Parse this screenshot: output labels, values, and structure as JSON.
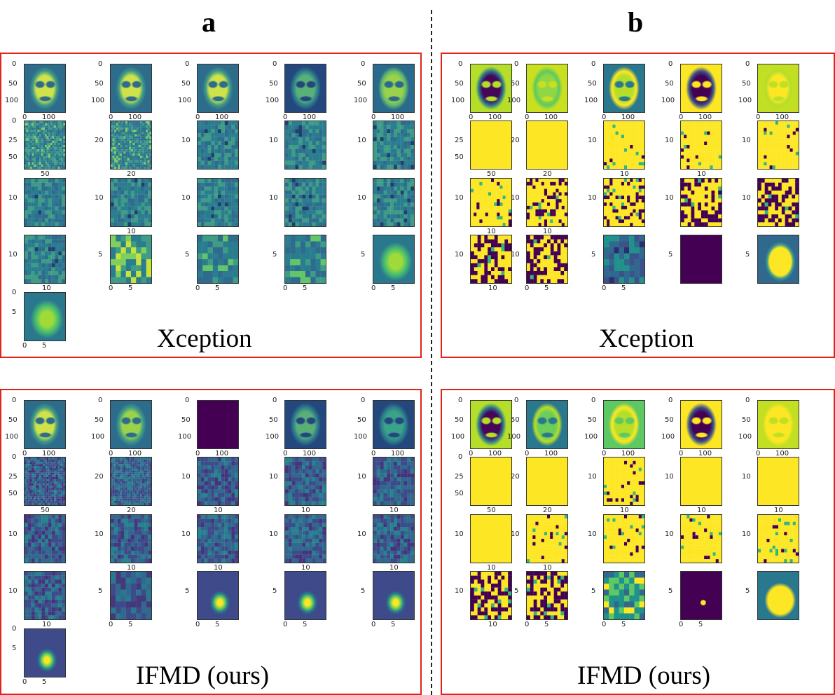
{
  "columns": [
    {
      "letter": "a"
    },
    {
      "letter": "b"
    }
  ],
  "panels": [
    {
      "id": "a-xception",
      "caption": "Xception",
      "palette": [
        "#2a7d8e",
        "#3e9c86",
        "#2f6b8e",
        "#7fcf5a",
        "#c7e23a"
      ],
      "faces": [
        {
          "colors": [
            "#cfe24a",
            "#2e6c8c",
            "#3e9a86"
          ]
        },
        {
          "colors": [
            "#cfe24a",
            "#2e6c8c",
            "#3e9a86"
          ]
        },
        {
          "colors": [
            "#cfe24a",
            "#2e6c8c",
            "#3e9a86"
          ]
        },
        {
          "colors": [
            "#58b178",
            "#24487e",
            "#2e7e8c"
          ]
        },
        {
          "colors": [
            "#9bd24b",
            "#2a6a8c",
            "#63b96e"
          ]
        }
      ],
      "tile_styles": [
        "noise",
        "noise",
        "grid",
        "grid",
        "grid",
        "grid",
        "grid",
        "grid",
        "grid",
        "grid",
        "grid",
        "blobs",
        "block",
        "block",
        "blob-bright",
        "blob-bright"
      ],
      "ticks": {
        "row1_y": [
          "0",
          "50",
          "100"
        ],
        "row1_x": [
          "0",
          "100"
        ],
        "row2_y": [
          [
            "0",
            "25",
            "50"
          ],
          [
            "",
            "20",
            ""
          ],
          [
            "",
            "10",
            ""
          ],
          [
            "",
            "10",
            ""
          ],
          [
            "",
            "10",
            ""
          ]
        ],
        "row2_x": [
          "50",
          "20",
          "",
          "",
          ""
        ],
        "row3_y": [
          "",
          "10",
          ""
        ],
        "row3_x": [
          "",
          "10",
          "",
          "",
          ""
        ],
        "row4_y": [
          [
            "",
            "10",
            ""
          ],
          [
            "",
            "5",
            ""
          ],
          [
            "",
            "5",
            ""
          ],
          [
            "",
            "5",
            ""
          ],
          [
            "",
            "5",
            ""
          ]
        ],
        "row4_x": [
          [
            "",
            "10"
          ],
          [
            "0",
            "5"
          ],
          [
            "0",
            "5"
          ],
          [
            "0",
            "5"
          ],
          [
            "0",
            "5"
          ]
        ],
        "row5_y": [
          "0",
          "5"
        ],
        "row5_x": [
          "0",
          "5"
        ]
      }
    },
    {
      "id": "b-xception",
      "caption": "Xception",
      "palette": [
        "#fde725",
        "#440154",
        "#35b779",
        "#31688e"
      ],
      "faces": [
        {
          "colors": [
            "#46065a",
            "#b5de2b",
            "#2a788e"
          ]
        },
        {
          "colors": [
            "#8fd744",
            "#c8e020",
            "#5ec962"
          ]
        },
        {
          "colors": [
            "#b5de2b",
            "#2a788e",
            "#fde725"
          ]
        },
        {
          "colors": [
            "#440154",
            "#fde725",
            "#3b528b"
          ]
        },
        {
          "colors": [
            "#fde725",
            "#c2df23",
            "#b5de2b"
          ]
        }
      ],
      "tile_styles": [
        "yellow",
        "yellow",
        "yellow-spots",
        "yellow-spots",
        "yellow-spots",
        "yellow-spots",
        "yellow-dark",
        "yellow-dark",
        "dark-yellow",
        "dark-yellow",
        "dark-yellow",
        "dark-yellow",
        "teal",
        "dark",
        "shape"
      ],
      "ticks": {
        "row1_y": [
          "0",
          "50",
          "100"
        ],
        "row1_x": [
          "0",
          "100"
        ],
        "row2_y": [
          [
            "",
            "25",
            "50"
          ],
          [
            "",
            "20",
            ""
          ],
          [
            "",
            "10",
            ""
          ],
          [
            "",
            "10",
            ""
          ],
          [
            "",
            "10",
            ""
          ]
        ],
        "row2_x": [
          "50",
          "20",
          "10",
          "10",
          ""
        ],
        "row3_y": [
          "",
          "10",
          ""
        ],
        "row3_x": [
          "10",
          "10",
          "",
          "",
          ""
        ],
        "row4_y": [
          [
            "",
            "10",
            ""
          ],
          [
            "",
            "10",
            ""
          ],
          [
            "",
            "5",
            ""
          ],
          [
            "",
            "5",
            ""
          ],
          [
            "",
            "5",
            ""
          ]
        ],
        "row4_x": [
          [
            "",
            "10"
          ],
          [
            "0",
            "5"
          ],
          [
            "0",
            "5"
          ],
          [
            "",
            ""
          ],
          [
            "",
            ""
          ]
        ],
        "row5_y": [
          "0",
          "5"
        ],
        "row5_x": [
          "0",
          "5"
        ]
      }
    },
    {
      "id": "a-ifmd",
      "caption": "IFMD (ours)",
      "palette": [
        "#31688e",
        "#3e4a89",
        "#26828e",
        "#44397c",
        "#2a788e"
      ],
      "faces": [
        {
          "colors": [
            "#cfe24a",
            "#2e6c8c",
            "#3e9a86"
          ]
        },
        {
          "colors": [
            "#9bd24b",
            "#2e6c8c",
            "#3e9a86"
          ]
        },
        {
          "colors": [
            "#440154",
            "#440154",
            "#440154"
          ]
        },
        {
          "colors": [
            "#5aaf78",
            "#24487e",
            "#2e7e8c"
          ]
        },
        {
          "colors": [
            "#3aa38a",
            "#24487e",
            "#2e7e8c"
          ]
        }
      ],
      "tile_styles": [
        "noise-dark",
        "noise",
        "grid-dark",
        "grid-dark",
        "grid-dark",
        "grid-dark",
        "grid-dark",
        "grid-dark",
        "grid-dark",
        "grid-dark",
        "grid-dark",
        "blobs",
        "blob-yellow",
        "blob-yellow",
        "blob-yellow",
        "blob-yellow"
      ],
      "ticks": {
        "row1_y": [
          "0",
          "50",
          "100"
        ],
        "row1_x": [
          "0",
          "100"
        ],
        "row2_y": [
          [
            "0",
            "25",
            "50"
          ],
          [
            "",
            "20",
            ""
          ],
          [
            "",
            "10",
            ""
          ],
          [
            "",
            "10",
            ""
          ],
          [
            "",
            "10",
            ""
          ]
        ],
        "row2_x": [
          "50",
          "20",
          "10",
          "10",
          "10"
        ],
        "row3_y": [
          "",
          "10",
          ""
        ],
        "row3_x": [
          "",
          "10",
          "10",
          "10",
          "10"
        ],
        "row4_y": [
          [
            "",
            "10",
            ""
          ],
          [
            "",
            "5",
            ""
          ],
          [
            "",
            "5",
            ""
          ],
          [
            "",
            "5",
            ""
          ],
          [
            "",
            "5",
            ""
          ]
        ],
        "row4_x": [
          [
            "",
            "10"
          ],
          [
            "0",
            "5"
          ],
          [
            "0",
            "5"
          ],
          [
            "0",
            "5"
          ],
          [
            "0",
            "5"
          ]
        ],
        "row5_y": [
          "0",
          "5"
        ],
        "row5_x": [
          "0",
          "5"
        ]
      }
    },
    {
      "id": "b-ifmd",
      "caption": "IFMD (ours)",
      "palette": [
        "#fde725",
        "#440154",
        "#35b779",
        "#31688e"
      ],
      "faces": [
        {
          "colors": [
            "#46065a",
            "#b5de2b",
            "#2a788e"
          ]
        },
        {
          "colors": [
            "#6ccd5a",
            "#2a788e",
            "#b5de2b"
          ]
        },
        {
          "colors": [
            "#b5de2b",
            "#5ec962",
            "#fde725"
          ]
        },
        {
          "colors": [
            "#440154",
            "#fde725",
            "#3b528b"
          ]
        },
        {
          "colors": [
            "#fde725",
            "#c2df23",
            "#fde725"
          ]
        }
      ],
      "tile_styles": [
        "yellow",
        "yellow",
        "yellow-spots",
        "yellow",
        "yellow",
        "yellow",
        "yellow-spots",
        "yellow-spots",
        "yellow-spots",
        "yellow-spots",
        "dark-yellow",
        "dark-yellow",
        "teal-yellow",
        "dark-dot",
        "shape2"
      ],
      "ticks": {
        "row1_y": [
          "0",
          "50",
          "100"
        ],
        "row1_x": [
          "0",
          "100"
        ],
        "row2_y": [
          [
            "0",
            "25",
            "50"
          ],
          [
            "",
            "20",
            ""
          ],
          [
            "",
            "10",
            ""
          ],
          [
            "",
            "10",
            ""
          ],
          [
            "",
            "10",
            ""
          ]
        ],
        "row2_x": [
          "50",
          "20",
          "10",
          "10",
          "10"
        ],
        "row3_y": [
          "",
          "10",
          ""
        ],
        "row3_x": [
          "10",
          "10",
          "",
          "",
          ""
        ],
        "row4_y": [
          [
            "",
            "10",
            ""
          ],
          [
            "",
            "5",
            ""
          ],
          [
            "",
            "5",
            ""
          ],
          [
            "",
            "5",
            ""
          ],
          [
            "",
            "5",
            ""
          ]
        ],
        "row4_x": [
          [
            "",
            "10"
          ],
          [
            "0",
            "5"
          ],
          [
            "0",
            "5"
          ],
          [
            "0",
            "5"
          ],
          [
            "",
            ""
          ]
        ],
        "row5_y": [
          "0",
          "5"
        ],
        "row5_x": [
          "0",
          "5"
        ]
      }
    }
  ]
}
